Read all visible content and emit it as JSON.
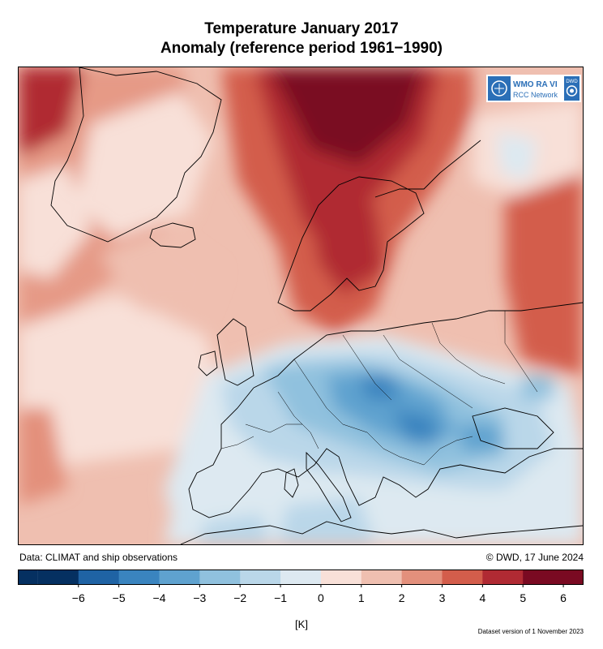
{
  "title_line1": "Temperature January 2017",
  "title_line2": "Anomaly (reference period 1961−1990)",
  "logo": {
    "wmo_text": "WMO RA VI",
    "rcc_text": "RCC Network",
    "dwd_text": "DWD",
    "icons": [
      "wmo-emblem-icon",
      "dwd-swirl-icon"
    ]
  },
  "source_note": "Data: CLIMAT and ship observations",
  "copyright": "© DWD, 17 June 2024",
  "colorbar": {
    "unit": "[K]",
    "ticks": [
      "−6",
      "−5",
      "−4",
      "−3",
      "−2",
      "−1",
      "0",
      "1",
      "2",
      "3",
      "4",
      "5",
      "6"
    ],
    "colors": [
      "#053061",
      "#1f63a4",
      "#3a84bf",
      "#5fa2cf",
      "#90c1de",
      "#bad7e9",
      "#dde9f1",
      "#f8e0d8",
      "#efbfb0",
      "#e3907c",
      "#d35d4b",
      "#b02a33",
      "#7a0a22"
    ]
  },
  "dataset_version": "Dataset version of 1 November 2023"
}
